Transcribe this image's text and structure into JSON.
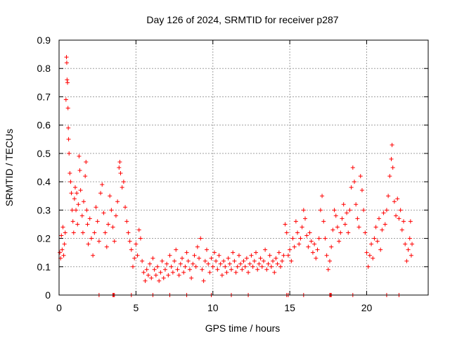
{
  "chart_data": {
    "type": "scatter",
    "title": "Day 126 of 2024, SRMTID for receiver p287",
    "xlabel": "GPS time / hours",
    "ylabel": "SRMTID / TECUs",
    "xlim": [
      0,
      24
    ],
    "ylim": [
      0,
      0.9
    ],
    "xticks": [
      0,
      5,
      10,
      15,
      20
    ],
    "xtick_labels": [
      "0",
      "5",
      "10",
      "15",
      "20"
    ],
    "yticks": [
      0,
      0.1,
      0.2,
      0.3,
      0.4,
      0.5,
      0.6,
      0.7,
      0.8,
      0.9
    ],
    "ytick_labels": [
      "0",
      "0.1",
      "0.2",
      "0.3",
      "0.4",
      "0.5",
      "0.6",
      "0.7",
      "0.8",
      "0.9"
    ],
    "grid": true,
    "marker": "plus",
    "series": [
      {
        "name": "SRMTID",
        "color": "#ff0000",
        "points": [
          [
            0.05,
            0.15
          ],
          [
            0.1,
            0.13
          ],
          [
            0.15,
            0.21
          ],
          [
            0.2,
            0.16
          ],
          [
            0.25,
            0.24
          ],
          [
            0.3,
            0.14
          ],
          [
            0.35,
            0.18
          ],
          [
            0.4,
            0.22
          ],
          [
            0.45,
            0.69
          ],
          [
            0.48,
            0.84
          ],
          [
            0.5,
            0.82
          ],
          [
            0.52,
            0.76
          ],
          [
            0.55,
            0.75
          ],
          [
            0.58,
            0.66
          ],
          [
            0.6,
            0.59
          ],
          [
            0.62,
            0.55
          ],
          [
            0.65,
            0.5
          ],
          [
            0.7,
            0.43
          ],
          [
            0.75,
            0.4
          ],
          [
            0.8,
            0.36
          ],
          [
            0.85,
            0.3
          ],
          [
            0.9,
            0.26
          ],
          [
            0.95,
            0.22
          ],
          [
            1.0,
            0.34
          ],
          [
            1.05,
            0.38
          ],
          [
            1.1,
            0.3
          ],
          [
            1.15,
            0.36
          ],
          [
            1.2,
            0.25
          ],
          [
            1.25,
            0.32
          ],
          [
            1.3,
            0.49
          ],
          [
            1.35,
            0.44
          ],
          [
            1.4,
            0.37
          ],
          [
            1.5,
            0.28
          ],
          [
            1.55,
            0.22
          ],
          [
            1.6,
            0.33
          ],
          [
            1.7,
            0.42
          ],
          [
            1.75,
            0.47
          ],
          [
            1.8,
            0.3
          ],
          [
            1.85,
            0.25
          ],
          [
            1.9,
            0.18
          ],
          [
            2.0,
            0.27
          ],
          [
            2.1,
            0.2
          ],
          [
            2.2,
            0.14
          ],
          [
            2.3,
            0.22
          ],
          [
            2.4,
            0.31
          ],
          [
            2.5,
            0.26
          ],
          [
            2.6,
            0.19
          ],
          [
            2.7,
            0.36
          ],
          [
            2.8,
            0.39
          ],
          [
            2.9,
            0.29
          ],
          [
            3.0,
            0.22
          ],
          [
            3.1,
            0.17
          ],
          [
            3.2,
            0.25
          ],
          [
            3.3,
            0.35
          ],
          [
            3.4,
            0.3
          ],
          [
            3.5,
            0.24
          ],
          [
            3.6,
            0.19
          ],
          [
            3.7,
            0.28
          ],
          [
            3.8,
            0.33
          ],
          [
            3.9,
            0.45
          ],
          [
            3.95,
            0.47
          ],
          [
            4.0,
            0.43
          ],
          [
            4.1,
            0.38
          ],
          [
            4.2,
            0.4
          ],
          [
            4.3,
            0.31
          ],
          [
            4.4,
            0.26
          ],
          [
            4.5,
            0.22
          ],
          [
            4.6,
            0.19
          ],
          [
            4.7,
            0.16
          ],
          [
            4.8,
            0.1
          ],
          [
            4.9,
            0.13
          ],
          [
            5.0,
            0.18
          ],
          [
            5.1,
            0.14
          ],
          [
            5.2,
            0.23
          ],
          [
            5.3,
            0.2
          ],
          [
            5.4,
            0.12
          ],
          [
            5.5,
            0.08
          ],
          [
            5.6,
            0.05
          ],
          [
            5.7,
            0.09
          ],
          [
            5.8,
            0.07
          ],
          [
            5.9,
            0.11
          ],
          [
            6.0,
            0.06
          ],
          [
            6.1,
            0.13
          ],
          [
            6.2,
            0.09
          ],
          [
            6.3,
            0.07
          ],
          [
            6.4,
            0.1
          ],
          [
            6.5,
            0.05
          ],
          [
            6.6,
            0.08
          ],
          [
            6.7,
            0.12
          ],
          [
            6.8,
            0.06
          ],
          [
            6.9,
            0.09
          ],
          [
            7.0,
            0.11
          ],
          [
            7.1,
            0.07
          ],
          [
            7.2,
            0.14
          ],
          [
            7.3,
            0.1
          ],
          [
            7.4,
            0.08
          ],
          [
            7.5,
            0.12
          ],
          [
            7.6,
            0.16
          ],
          [
            7.7,
            0.09
          ],
          [
            7.8,
            0.07
          ],
          [
            7.9,
            0.11
          ],
          [
            8.0,
            0.13
          ],
          [
            8.1,
            0.08
          ],
          [
            8.2,
            0.1
          ],
          [
            8.3,
            0.15
          ],
          [
            8.4,
            0.12
          ],
          [
            8.5,
            0.09
          ],
          [
            8.6,
            0.06
          ],
          [
            8.7,
            0.11
          ],
          [
            8.8,
            0.14
          ],
          [
            8.9,
            0.1
          ],
          [
            9.0,
            0.17
          ],
          [
            9.1,
            0.13
          ],
          [
            9.2,
            0.2
          ],
          [
            9.3,
            0.09
          ],
          [
            9.4,
            0.05
          ],
          [
            9.5,
            0.12
          ],
          [
            9.6,
            0.16
          ],
          [
            9.7,
            0.11
          ],
          [
            9.8,
            0.08
          ],
          [
            9.9,
            0.13
          ],
          [
            10.0,
            0.1
          ],
          [
            10.1,
            0.15
          ],
          [
            10.2,
            0.12
          ],
          [
            10.3,
            0.09
          ],
          [
            10.4,
            0.14
          ],
          [
            10.5,
            0.11
          ],
          [
            10.6,
            0.07
          ],
          [
            10.7,
            0.12
          ],
          [
            10.8,
            0.1
          ],
          [
            10.9,
            0.08
          ],
          [
            11.0,
            0.13
          ],
          [
            11.1,
            0.11
          ],
          [
            11.2,
            0.09
          ],
          [
            11.3,
            0.15
          ],
          [
            11.4,
            0.12
          ],
          [
            11.5,
            0.08
          ],
          [
            11.6,
            0.1
          ],
          [
            11.7,
            0.14
          ],
          [
            11.8,
            0.11
          ],
          [
            11.9,
            0.09
          ],
          [
            12.0,
            0.12
          ],
          [
            12.1,
            0.1
          ],
          [
            12.2,
            0.13
          ],
          [
            12.3,
            0.08
          ],
          [
            12.4,
            0.11
          ],
          [
            12.5,
            0.14
          ],
          [
            12.6,
            0.1
          ],
          [
            12.7,
            0.12
          ],
          [
            12.8,
            0.15
          ],
          [
            12.9,
            0.09
          ],
          [
            13.0,
            0.11
          ],
          [
            13.1,
            0.13
          ],
          [
            13.2,
            0.1
          ],
          [
            13.3,
            0.12
          ],
          [
            13.4,
            0.16
          ],
          [
            13.5,
            0.09
          ],
          [
            13.6,
            0.11
          ],
          [
            13.7,
            0.14
          ],
          [
            13.8,
            0.1
          ],
          [
            13.9,
            0.12
          ],
          [
            14.0,
            0.08
          ],
          [
            14.1,
            0.13
          ],
          [
            14.2,
            0.11
          ],
          [
            14.3,
            0.15
          ],
          [
            14.4,
            0.1
          ],
          [
            14.5,
            0.12
          ],
          [
            14.6,
            0.14
          ],
          [
            14.7,
            0.25
          ],
          [
            14.8,
            0.22
          ],
          [
            14.9,
            0.14
          ],
          [
            15.0,
            0.16
          ],
          [
            15.1,
            0.12
          ],
          [
            15.2,
            0.2
          ],
          [
            15.3,
            0.17
          ],
          [
            15.4,
            0.26
          ],
          [
            15.5,
            0.22
          ],
          [
            15.6,
            0.18
          ],
          [
            15.7,
            0.2
          ],
          [
            15.8,
            0.24
          ],
          [
            15.9,
            0.3
          ],
          [
            16.0,
            0.27
          ],
          [
            16.1,
            0.21
          ],
          [
            16.2,
            0.17
          ],
          [
            16.3,
            0.22
          ],
          [
            16.4,
            0.19
          ],
          [
            16.5,
            0.15
          ],
          [
            16.6,
            0.18
          ],
          [
            16.7,
            0.13
          ],
          [
            16.8,
            0.16
          ],
          [
            16.9,
            0.2
          ],
          [
            17.0,
            0.3
          ],
          [
            17.1,
            0.35
          ],
          [
            17.2,
            0.26
          ],
          [
            17.3,
            0.2
          ],
          [
            17.4,
            0.14
          ],
          [
            17.5,
            0.09
          ],
          [
            17.6,
            0.12
          ],
          [
            17.7,
            0.17
          ],
          [
            17.8,
            0.23
          ],
          [
            17.9,
            0.3
          ],
          [
            18.0,
            0.28
          ],
          [
            18.1,
            0.24
          ],
          [
            18.2,
            0.19
          ],
          [
            18.3,
            0.22
          ],
          [
            18.4,
            0.27
          ],
          [
            18.5,
            0.32
          ],
          [
            18.6,
            0.25
          ],
          [
            18.7,
            0.29
          ],
          [
            18.8,
            0.22
          ],
          [
            18.9,
            0.3
          ],
          [
            19.0,
            0.38
          ],
          [
            19.1,
            0.45
          ],
          [
            19.2,
            0.4
          ],
          [
            19.3,
            0.32
          ],
          [
            19.4,
            0.27
          ],
          [
            19.5,
            0.24
          ],
          [
            19.6,
            0.42
          ],
          [
            19.7,
            0.37
          ],
          [
            19.8,
            0.3
          ],
          [
            19.9,
            0.22
          ],
          [
            20.0,
            0.15
          ],
          [
            20.1,
            0.1
          ],
          [
            20.2,
            0.14
          ],
          [
            20.3,
            0.18
          ],
          [
            20.4,
            0.13
          ],
          [
            20.5,
            0.2
          ],
          [
            20.6,
            0.24
          ],
          [
            20.7,
            0.19
          ],
          [
            20.8,
            0.27
          ],
          [
            20.9,
            0.16
          ],
          [
            21.0,
            0.23
          ],
          [
            21.1,
            0.29
          ],
          [
            21.2,
            0.25
          ],
          [
            21.3,
            0.3
          ],
          [
            21.4,
            0.35
          ],
          [
            21.5,
            0.42
          ],
          [
            21.6,
            0.48
          ],
          [
            21.65,
            0.53
          ],
          [
            21.7,
            0.45
          ],
          [
            21.8,
            0.33
          ],
          [
            21.9,
            0.28
          ],
          [
            22.0,
            0.34
          ],
          [
            22.1,
            0.27
          ],
          [
            22.2,
            0.3
          ],
          [
            22.3,
            0.23
          ],
          [
            22.4,
            0.26
          ],
          [
            22.5,
            0.18
          ],
          [
            22.6,
            0.12
          ],
          [
            22.7,
            0.16
          ],
          [
            22.8,
            0.2
          ],
          [
            22.85,
            0.26
          ],
          [
            22.9,
            0.14
          ],
          [
            22.95,
            0.18
          ]
        ]
      }
    ],
    "zero_points_x": [
      2.6,
      3.5,
      3.55,
      3.6,
      4.7,
      6.1,
      7.2,
      8.3,
      9.9,
      11.2,
      12.3,
      14.8,
      14.9,
      15.9,
      17.6,
      17.65,
      17.7,
      19.1,
      21.3,
      22.1
    ]
  }
}
